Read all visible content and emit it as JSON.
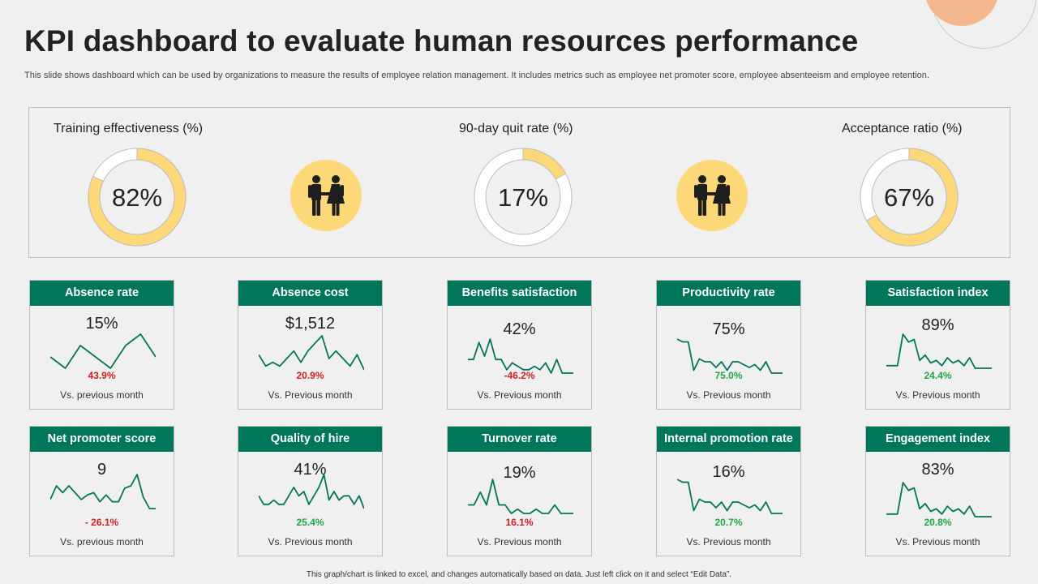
{
  "title": "KPI dashboard to evaluate human resources performance",
  "subtitle": "This slide shows dashboard which can be used by organizations to measure the results of employee relation management. It includes metrics such as employee net promoter score, employee absenteeism and employee retention.",
  "gauges": [
    {
      "title": "Training effectiveness (%)",
      "value_text": "82%",
      "percent": 82
    },
    {
      "title": "90-day quit rate (%)",
      "value_text": "17%",
      "percent": 17
    },
    {
      "title": "Acceptance ratio (%)",
      "value_text": "67%",
      "percent": 67
    }
  ],
  "colors": {
    "accent_green": "#00775a",
    "gauge_fill": "#fdd878",
    "gauge_track": "#ffffff",
    "negative": "#d11f1f",
    "positive": "#1fa843",
    "icon_bg": "#fdd878"
  },
  "icons": [
    "couple-icon",
    "couple-icon"
  ],
  "cards": [
    {
      "title": "Absence rate",
      "value": "15%",
      "change": "43.9%",
      "trend": "negative",
      "footer": "Vs. previous month",
      "spark": [
        3,
        2,
        4,
        3,
        2,
        4,
        5,
        3
      ]
    },
    {
      "title": "Absence cost",
      "value": "$1,512",
      "change": "20.9%",
      "trend": "negative",
      "footer": "Vs. Previous month",
      "spark": [
        5,
        2,
        3,
        2,
        4,
        6,
        3,
        6,
        8,
        10,
        4,
        6,
        4,
        2,
        5,
        1
      ]
    },
    {
      "title": "Benefits satisfaction",
      "value": "42%",
      "change": "-46.2%",
      "trend": "negative",
      "footer": "Vs. Previous month",
      "spark": [
        5,
        5,
        10,
        6,
        11,
        5,
        5,
        2,
        4,
        3,
        2,
        2,
        3,
        2,
        4,
        1,
        5,
        1,
        1,
        1
      ]
    },
    {
      "title": "Productivity rate",
      "value": "75%",
      "change": "75.0%",
      "trend": "positive",
      "footer": "Vs. Previous month",
      "spark": [
        13,
        12,
        12,
        2,
        6,
        5,
        5,
        3,
        5,
        2,
        5,
        5,
        4,
        3,
        4,
        2,
        5,
        1,
        1,
        1
      ]
    },
    {
      "title": "Satisfaction index",
      "value": "89%",
      "change": "24.4%",
      "trend": "positive",
      "footer": "Vs. Previous month",
      "spark": [
        1,
        1,
        1,
        13,
        10,
        11,
        3,
        5,
        2,
        3,
        1,
        4,
        2,
        3,
        1,
        4,
        0,
        0,
        0,
        0
      ]
    },
    {
      "title": "Net promoter score",
      "value": "9",
      "change": "- 26.1%",
      "trend": "negative",
      "footer": "Vs. previous month",
      "spark": [
        5,
        11,
        8,
        11,
        8,
        5,
        7,
        8,
        4,
        7,
        4,
        4,
        10,
        11,
        16,
        6,
        1,
        1
      ]
    },
    {
      "title": "Quality of hire",
      "value": "41%",
      "change": "25.4%",
      "trend": "positive",
      "footer": "Vs. Previous month",
      "spark": [
        4,
        2,
        2,
        3,
        2,
        2,
        4,
        6,
        4,
        5,
        2,
        4,
        6,
        9,
        3,
        5,
        3,
        4,
        4,
        2,
        4,
        1
      ]
    },
    {
      "title": "Turnover rate",
      "value": "19%",
      "change": "16.1%",
      "trend": "negative",
      "footer": "Vs. Previous month",
      "spark": [
        3,
        3,
        6,
        3,
        9,
        3,
        3,
        1,
        2,
        1,
        1,
        2,
        1,
        1,
        3,
        1,
        1,
        1
      ]
    },
    {
      "title": "Internal promotion rate",
      "value": "16%",
      "change": "20.7%",
      "trend": "positive",
      "footer": "Vs. Previous month",
      "spark": [
        13,
        12,
        12,
        2,
        6,
        5,
        5,
        3,
        5,
        2,
        5,
        5,
        4,
        3,
        4,
        2,
        5,
        1,
        1,
        1
      ]
    },
    {
      "title": "Engagement index",
      "value": "83%",
      "change": "20.8%",
      "trend": "positive",
      "footer": "Vs. Previous month",
      "spark": [
        1,
        1,
        1,
        13,
        10,
        11,
        3,
        5,
        2,
        3,
        1,
        4,
        2,
        3,
        1,
        4,
        0,
        0,
        0,
        0
      ]
    }
  ],
  "footer": "This graph/chart is linked to excel, and changes automatically based on data. Just left click on it and select “Edit Data”."
}
